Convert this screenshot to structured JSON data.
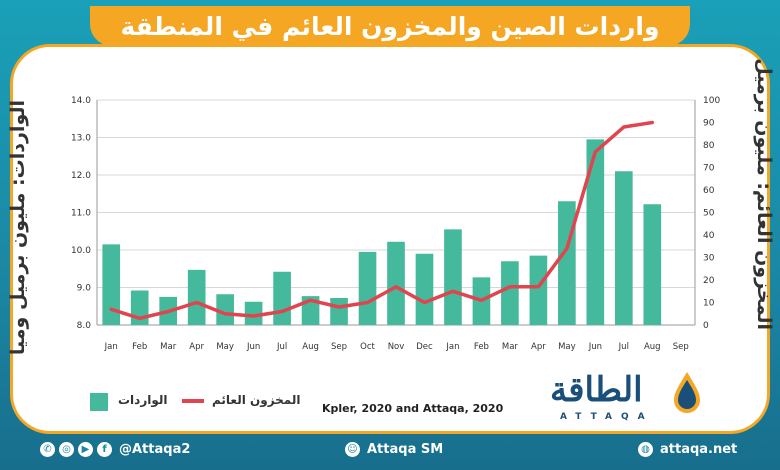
{
  "header": {
    "title": "واردات الصين والمخزون العائم في المنطقة"
  },
  "chart_data": {
    "type": "bar",
    "title": "واردات الصين والمخزون العائم في المنطقة",
    "categories": [
      "Jan",
      "Feb",
      "Mar",
      "Apr",
      "May",
      "Jun",
      "Jul",
      "Aug",
      "Sep",
      "Oct",
      "Nov",
      "Dec",
      "Jan",
      "Feb",
      "Mar",
      "Apr",
      "May",
      "Jun",
      "Jul",
      "Aug",
      "Sep"
    ],
    "ylabel_left": "الواردات: مليون برميل وميا",
    "ylabel_right": "المخزون العائم: مليون برميل",
    "left_axis": {
      "ylim": [
        8.0,
        14.0
      ],
      "ticks": [
        "8.0",
        "9.0",
        "10.0",
        "11.0",
        "12.0",
        "13.0",
        "14.0"
      ]
    },
    "right_axis": {
      "ylim": [
        0,
        100
      ],
      "ticks": [
        "0",
        "10",
        "20",
        "30",
        "40",
        "50",
        "60",
        "70",
        "80",
        "90",
        "100"
      ]
    },
    "series": [
      {
        "name": "الواردات",
        "type": "bar",
        "axis": "left",
        "color": "#45b99b",
        "values": [
          10.15,
          8.92,
          8.75,
          9.47,
          8.82,
          8.62,
          9.42,
          8.77,
          8.72,
          9.95,
          10.22,
          9.9,
          10.55,
          9.27,
          9.7,
          9.85,
          11.3,
          12.95,
          12.1,
          11.22,
          null
        ]
      },
      {
        "name": "المخزون العائم",
        "type": "line",
        "axis": "right",
        "color": "#e0454f",
        "values": [
          7,
          3,
          6,
          10,
          5,
          4,
          6,
          11,
          8,
          10,
          17,
          10,
          15,
          11,
          17,
          17,
          34,
          77,
          88,
          90,
          null
        ]
      }
    ],
    "grid": true,
    "legend": "bottom-left"
  },
  "legend": {
    "bars_label": "الواردات",
    "line_label": "المخزون العائم"
  },
  "source": "Kpler, 2020 and Attaqa, 2020",
  "logo": {
    "text": "الطاقة",
    "sub": "ATTAQA"
  },
  "footer": {
    "left_handle": "@Attaqa2",
    "center": "Attaqa SM",
    "right": "attaqa.net"
  }
}
